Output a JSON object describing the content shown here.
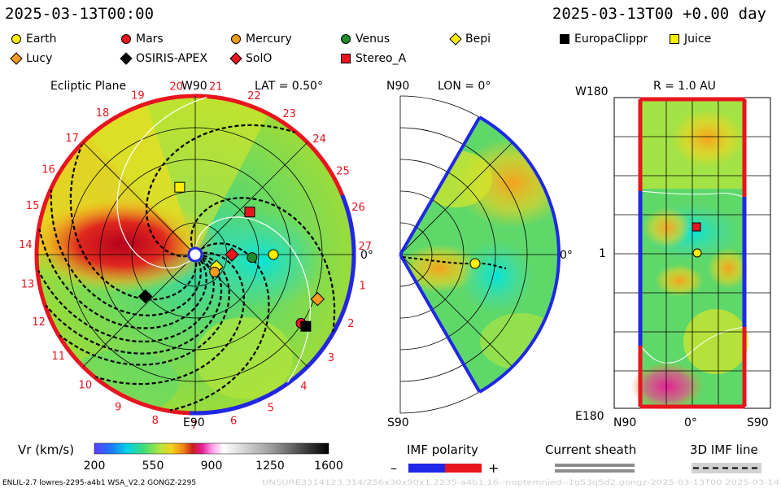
{
  "header": {
    "left_time": "2025-03-13T00:00",
    "right_time": "2025-03-13T00 +0.00 day"
  },
  "legend": [
    {
      "name": "Earth",
      "shape": "circle",
      "color": "#ffee00"
    },
    {
      "name": "Mars",
      "shape": "circle",
      "color": "#e8141e"
    },
    {
      "name": "Mercury",
      "shape": "circle",
      "color": "#f59a1e"
    },
    {
      "name": "Venus",
      "shape": "circle",
      "color": "#1e8c28"
    },
    {
      "name": "Bepi",
      "shape": "diamond",
      "color": "#ffee00"
    },
    {
      "name": "EuropaClippr",
      "shape": "square",
      "color": "#000000"
    },
    {
      "name": "Juice",
      "shape": "square",
      "color": "#ffee00"
    },
    {
      "name": "Lucy",
      "shape": "diamond",
      "color": "#f59a1e"
    },
    {
      "name": "OSIRIS-APEX",
      "shape": "diamond",
      "color": "#000000"
    },
    {
      "name": "SolO",
      "shape": "diamond",
      "color": "#e8141e"
    },
    {
      "name": "Stereo_A",
      "shape": "square",
      "color": "#e8141e"
    }
  ],
  "ecliptic": {
    "title": "Ecliptic Plane",
    "lat_label": "LAT = 0.50°",
    "top_label": "W90",
    "bottom_label": "E90",
    "right_label": "0°",
    "sectors": [
      "1",
      "2",
      "3",
      "4",
      "5",
      "6",
      "7",
      "8",
      "9",
      "10",
      "11",
      "12",
      "13",
      "14",
      "15",
      "16",
      "17",
      "18",
      "19",
      "20",
      "21",
      "22",
      "23",
      "24",
      "25",
      "26",
      "27"
    ]
  },
  "meridional": {
    "title": "LON = 0°",
    "top_label": "N90",
    "bottom_label": "S90",
    "right_label": "0°"
  },
  "map": {
    "title": "R = 1.0 AU",
    "top_label": "W180",
    "bottom_label": "E180",
    "mid_label": "1",
    "x_left": "N90",
    "x_mid": "0°",
    "x_right": "S90"
  },
  "colorbar": {
    "label": "Vr (km/s)",
    "ticks": [
      "200",
      "550",
      "900",
      "1250",
      "1600"
    ]
  },
  "imf": {
    "title": "IMF polarity",
    "minus": "–",
    "plus": "+",
    "sheath_title": "Current sheath",
    "line_title": "3D IMF line"
  },
  "footer": {
    "left": "ENLIL-2.7 lowres-2295-a4b1 WSA_V2.2 GONGZ-2295",
    "right": "UNSURE3314123.314/256x30x90x1.2235-a4b1.16--noptemnied--1g53q5d2.gongz-2025-03-13T00 2025-03-14"
  },
  "chart_data": {
    "type": "heatmap",
    "quantity": "Vr (km/s)",
    "color_range": [
      200,
      1600
    ],
    "color_ticks": [
      200,
      550,
      900,
      1250,
      1600
    ],
    "panels": [
      "Ecliptic Plane",
      "LON = 0°",
      "R = 1.0 AU"
    ]
  }
}
